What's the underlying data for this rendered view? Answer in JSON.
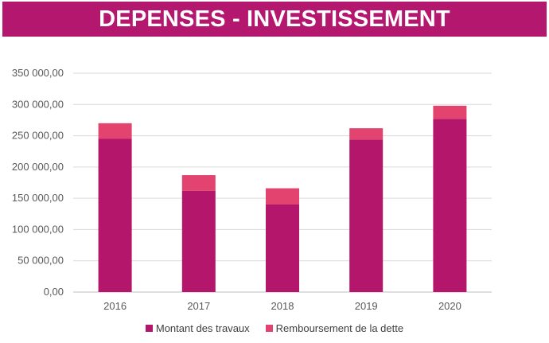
{
  "header": {
    "title": "DEPENSES - INVESTISSEMENT"
  },
  "colors": {
    "banner": "#b3186e",
    "travaux": "#b3166b",
    "dette": "#e2436f",
    "grid": "#d9d9d9",
    "axis_text": "#595959"
  },
  "chart_data": {
    "type": "bar",
    "stacked": true,
    "categories": [
      "2016",
      "2017",
      "2018",
      "2019",
      "2020"
    ],
    "series": [
      {
        "name": "Montant des travaux",
        "values": [
          245000,
          162000,
          140000,
          244000,
          277000
        ]
      },
      {
        "name": "Remboursement de la dette",
        "values": [
          25000,
          25000,
          26000,
          18000,
          21000
        ]
      }
    ],
    "ylim": [
      0,
      350000
    ],
    "yticks": [
      0,
      50000,
      100000,
      150000,
      200000,
      250000,
      300000,
      350000
    ],
    "ytick_labels": [
      "0,00",
      "50 000,00",
      "100 000,00",
      "150 000,00",
      "200 000,00",
      "250 000,00",
      "300 000,00",
      "350 000,00"
    ],
    "grid": true,
    "legend_position": "bottom"
  }
}
